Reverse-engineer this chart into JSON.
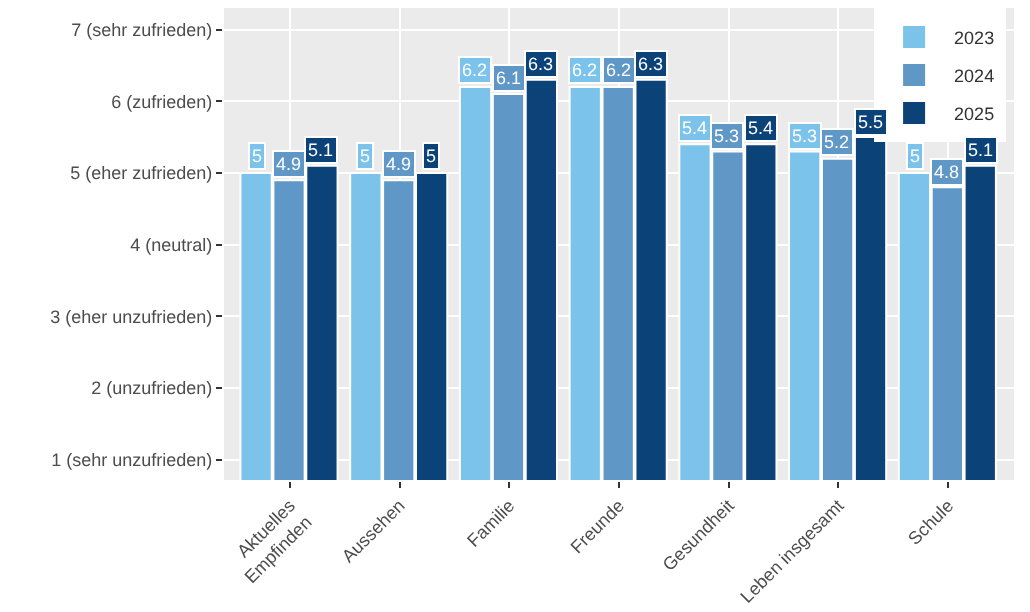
{
  "chart_data": {
    "type": "bar",
    "categories": [
      "Aktuelles Empfinden",
      "Aussehen",
      "Familie",
      "Freunde",
      "Gesundheit",
      "Leben insgesamt",
      "Schule"
    ],
    "series": [
      {
        "name": "2023",
        "color": "#7cc3ec",
        "values": [
          5,
          5,
          6.2,
          6.2,
          5.4,
          5.3,
          5
        ]
      },
      {
        "name": "2024",
        "color": "#5f97c6",
        "values": [
          4.9,
          4.9,
          6.1,
          6.2,
          5.3,
          5.2,
          4.8
        ]
      },
      {
        "name": "2025",
        "color": "#0b4277",
        "values": [
          5.1,
          5,
          6.3,
          6.3,
          5.4,
          5.5,
          5.1
        ]
      }
    ],
    "ylim": [
      0.72,
      7.3
    ],
    "yticks": [
      {
        "value": 1,
        "label": "1 (sehr unzufrieden)"
      },
      {
        "value": 2,
        "label": "2 (unzufrieden)"
      },
      {
        "value": 3,
        "label": "3 (eher unzufrieden)"
      },
      {
        "value": 4,
        "label": "4 (neutral)"
      },
      {
        "value": 5,
        "label": "5 (eher zufrieden)"
      },
      {
        "value": 6,
        "label": "6 (zufrieden)"
      },
      {
        "value": 7,
        "label": "7 (sehr zufrieden)"
      }
    ],
    "grid": true,
    "legend": "top right",
    "data_labels": true
  }
}
